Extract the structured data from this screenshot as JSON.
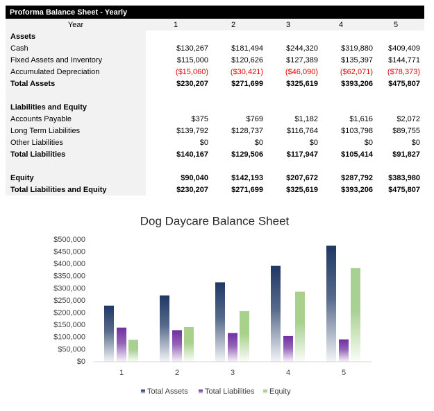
{
  "table": {
    "title": "Proforma Balance Sheet - Yearly",
    "header": [
      "Year",
      "1",
      "2",
      "3",
      "4",
      "5"
    ],
    "sections": [
      {
        "rows": [
          {
            "label": "Assets",
            "bold": true
          },
          {
            "label": "Cash",
            "values": [
              "$130,267",
              "$181,494",
              "$244,320",
              "$319,880",
              "$409,409"
            ]
          },
          {
            "label": "Fixed Assets and Inventory",
            "values": [
              "$115,000",
              "$120,626",
              "$127,389",
              "$135,397",
              "$144,771"
            ]
          },
          {
            "label": "Accumulated Depreciation",
            "values": [
              "($15,060)",
              "($30,421)",
              "($46,090)",
              "($62,071)",
              "($78,373)"
            ],
            "color": "#e00000"
          },
          {
            "label": "Total Assets",
            "bold": true,
            "values": [
              "$230,207",
              "$271,699",
              "$325,619",
              "$393,206",
              "$475,807"
            ]
          }
        ]
      },
      {
        "rows": [
          {
            "label": "Liabilities and Equity",
            "bold": true
          },
          {
            "label": "Accounts Payable",
            "values": [
              "$375",
              "$769",
              "$1,182",
              "$1,616",
              "$2,072"
            ]
          },
          {
            "label": "Long Term Liabilities",
            "values": [
              "$139,792",
              "$128,737",
              "$116,764",
              "$103,798",
              "$89,755"
            ]
          },
          {
            "label": "Other Liabilities",
            "values": [
              "$0",
              "$0",
              "$0",
              "$0",
              "$0"
            ]
          },
          {
            "label": "Total Liabilities",
            "bold": true,
            "values": [
              "$140,167",
              "$129,506",
              "$117,947",
              "$105,414",
              "$91,827"
            ]
          }
        ]
      },
      {
        "rows": [
          {
            "label": "Equity",
            "bold": true,
            "values": [
              "$90,040",
              "$142,193",
              "$207,672",
              "$287,792",
              "$383,980"
            ]
          },
          {
            "label": "Total Liabilities and Equity",
            "bold": true,
            "values": [
              "$230,207",
              "$271,699",
              "$325,619",
              "$393,206",
              "$475,807"
            ]
          }
        ]
      }
    ]
  },
  "chart_data": {
    "type": "bar",
    "title": "Dog Daycare Balance Sheet",
    "categories": [
      "1",
      "2",
      "3",
      "4",
      "5"
    ],
    "series": [
      {
        "name": "Total Assets",
        "color": "#1f3864",
        "values": [
          230207,
          271699,
          325619,
          393206,
          475807
        ]
      },
      {
        "name": "Total Liabilities",
        "color": "#7030a0",
        "values": [
          140167,
          129506,
          117947,
          105414,
          91827
        ]
      },
      {
        "name": "Equity",
        "color": "#a9d18e",
        "values": [
          90040,
          142193,
          207672,
          287792,
          383980
        ]
      }
    ],
    "ylim": [
      0,
      500000
    ],
    "yticks": [
      {
        "value": 0,
        "label": "$0"
      },
      {
        "value": 50000,
        "label": "$50,000"
      },
      {
        "value": 100000,
        "label": "$100,000"
      },
      {
        "value": 150000,
        "label": "$150,000"
      },
      {
        "value": 200000,
        "label": "$200,000"
      },
      {
        "value": 250000,
        "label": "$250,000"
      },
      {
        "value": 300000,
        "label": "$300,000"
      },
      {
        "value": 350000,
        "label": "$350,000"
      },
      {
        "value": 400000,
        "label": "$400,000"
      },
      {
        "value": 450000,
        "label": "$450,000"
      },
      {
        "value": 500000,
        "label": "$500,000"
      }
    ],
    "legend": "bottom"
  }
}
